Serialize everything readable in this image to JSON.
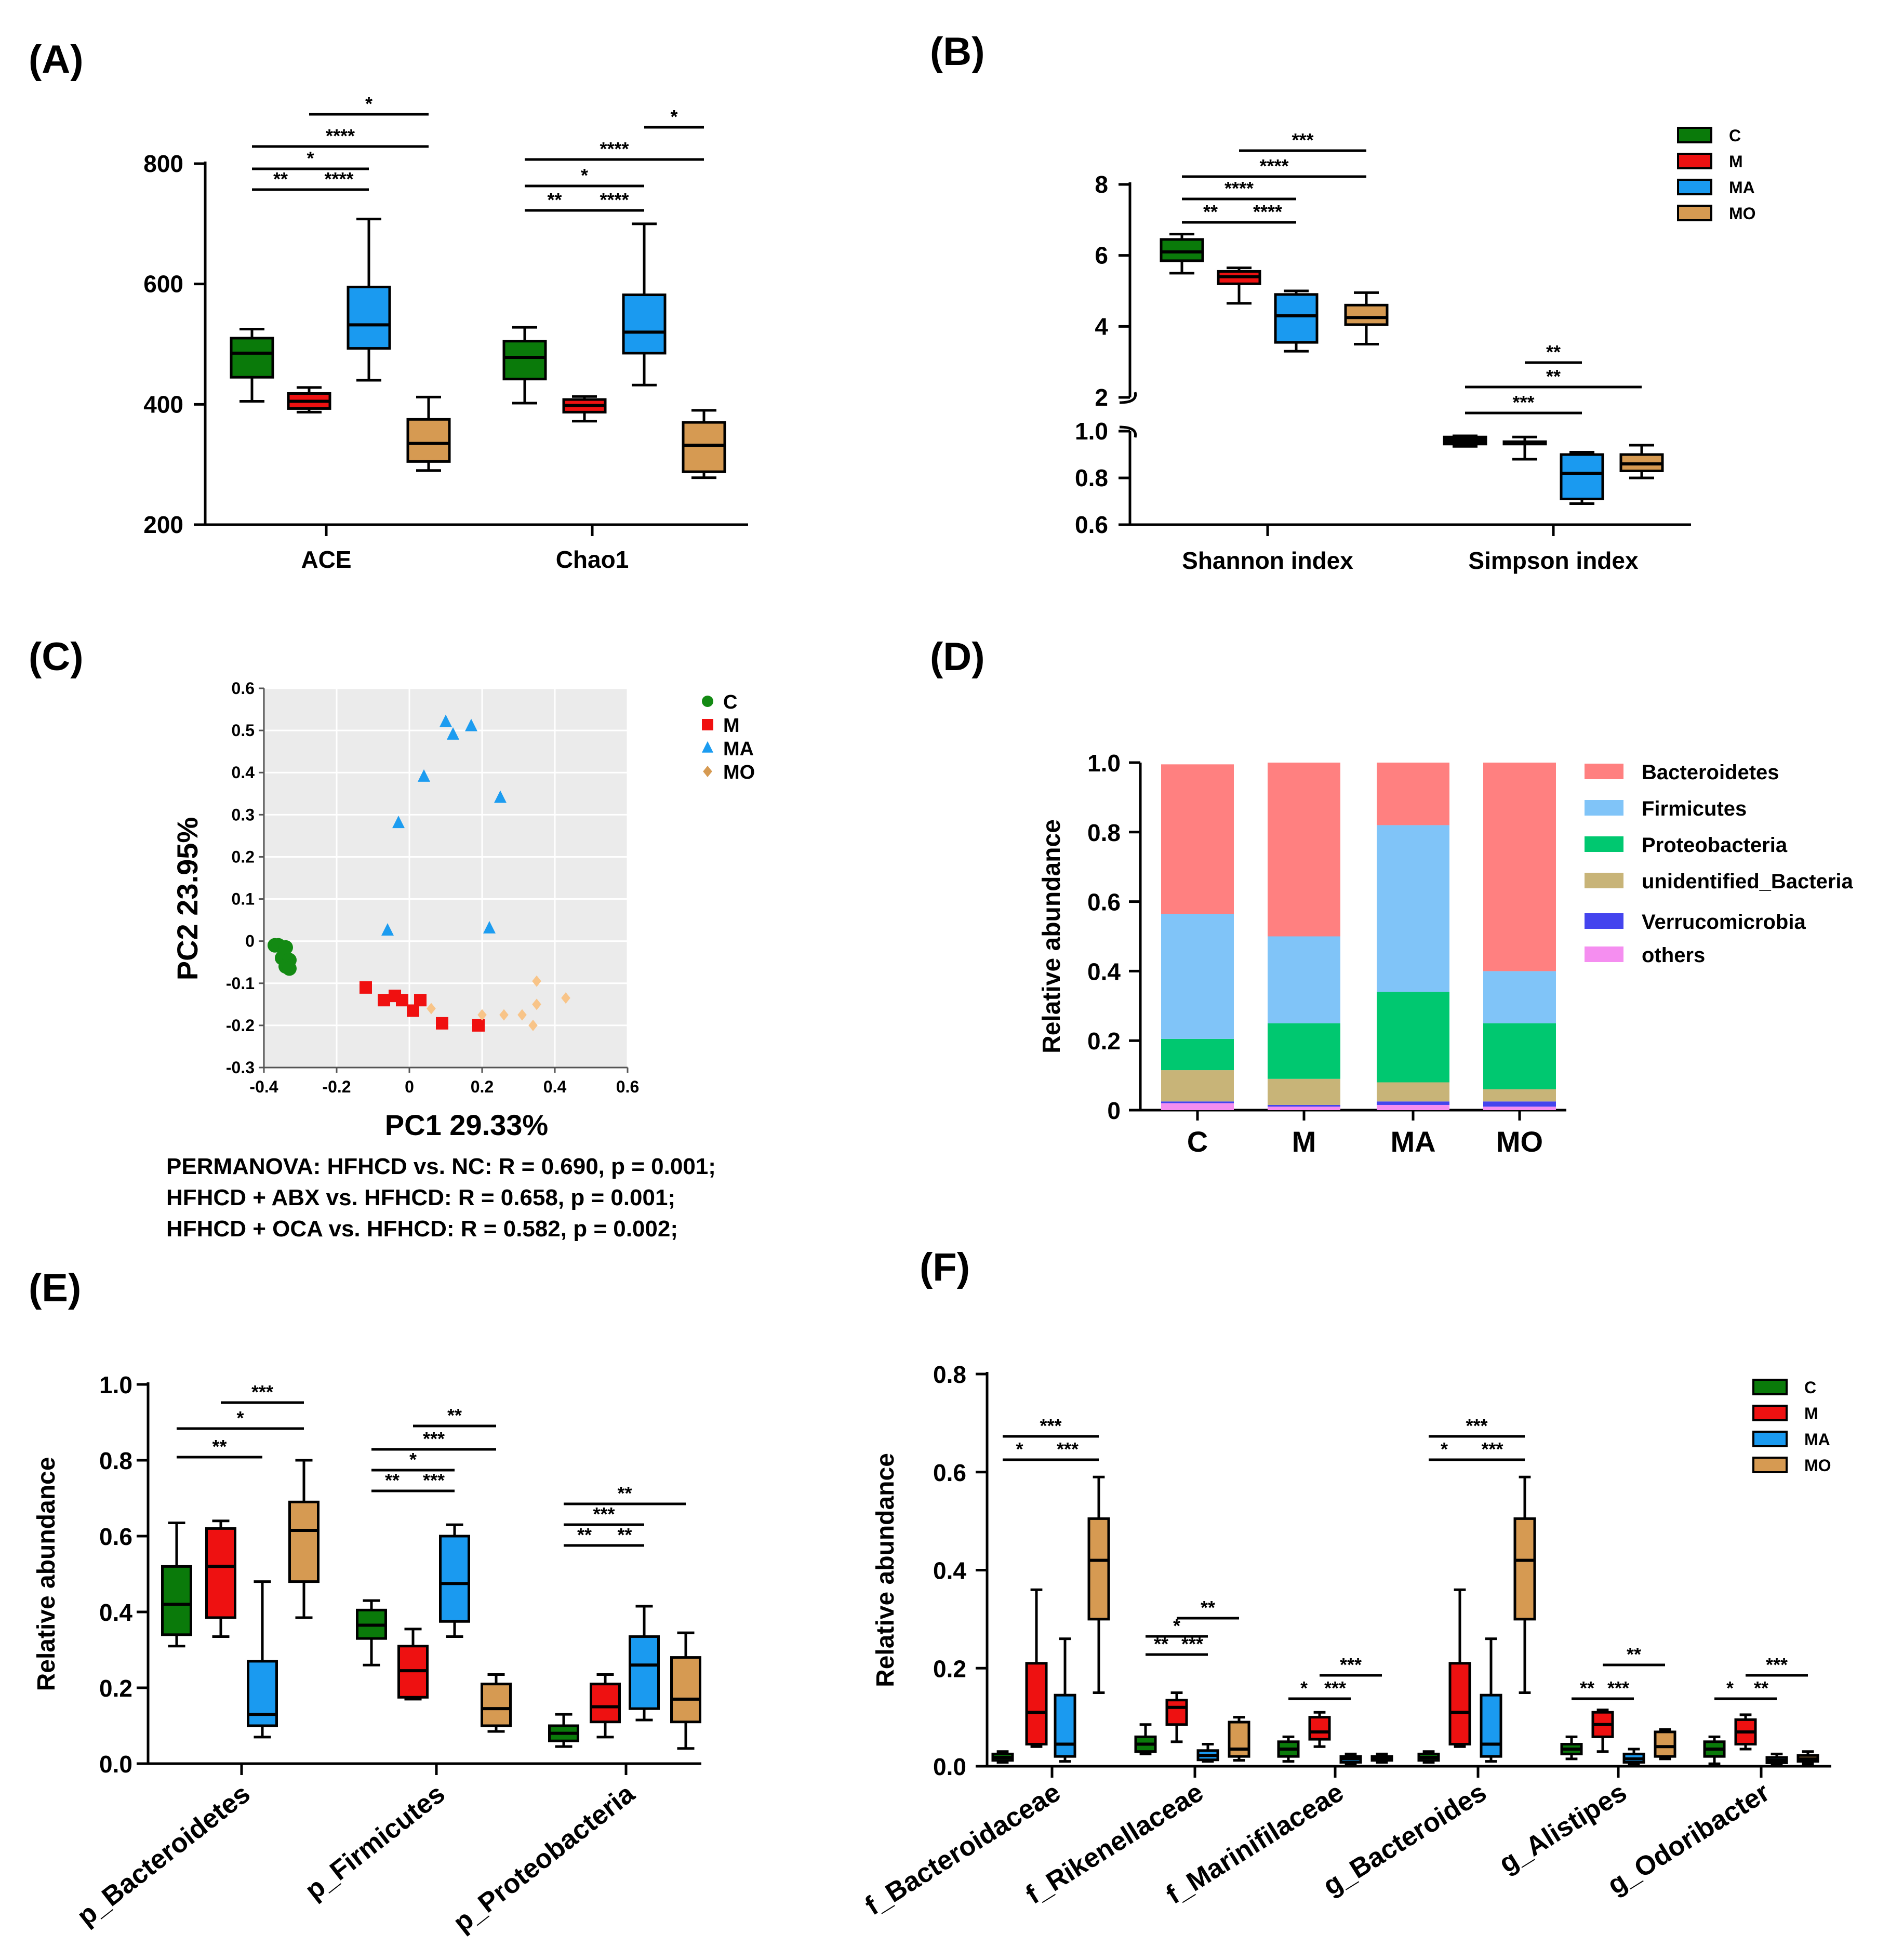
{
  "colors": {
    "C": "#0a7a0a",
    "M": "#ee1111",
    "MA": "#1a9af0",
    "MO": "#d69a52"
  },
  "phylum_colors": [
    "#ff8080",
    "#80c4f8",
    "#00c870",
    "#c8b478",
    "#4444ee",
    "#f58ef0"
  ],
  "chart_data": [
    {
      "panel": "(A)",
      "type": "boxplot",
      "categories": [
        "ACE",
        "Chao1"
      ],
      "groups": [
        "C",
        "M",
        "MA",
        "MO"
      ],
      "ylim": [
        200,
        800
      ],
      "yticks": [
        200,
        400,
        600,
        800
      ],
      "boxes": [
        [
          [
            405,
            445,
            485,
            510,
            525
          ],
          [
            387,
            393,
            405,
            418,
            428
          ],
          [
            440,
            493,
            532,
            595,
            708
          ],
          [
            290,
            305,
            335,
            375,
            412
          ]
        ],
        [
          [
            402,
            442,
            478,
            505,
            528
          ],
          [
            372,
            387,
            398,
            408,
            413
          ],
          [
            432,
            485,
            520,
            582,
            700
          ],
          [
            278,
            288,
            332,
            370,
            390
          ]
        ]
      ],
      "significance": [
        [
          {
            "from": 0,
            "to": 1,
            "label": "**"
          },
          {
            "from": 1,
            "to": 2,
            "label": "****"
          },
          {
            "from": 0,
            "to": 2,
            "label": "*"
          },
          {
            "from": 0,
            "to": 3,
            "label": "****"
          },
          {
            "from": 1,
            "to": 3,
            "label": "*"
          }
        ],
        [
          {
            "from": 0,
            "to": 1,
            "label": "**"
          },
          {
            "from": 1,
            "to": 2,
            "label": "****"
          },
          {
            "from": 0,
            "to": 2,
            "label": "*"
          },
          {
            "from": 0,
            "to": 3,
            "label": "****"
          },
          {
            "from": 2,
            "to": 3,
            "label": "*"
          }
        ]
      ]
    },
    {
      "panel": "(B)",
      "type": "boxplot",
      "categories": [
        "Shannon index",
        "Simpson index"
      ],
      "groups": [
        "C",
        "M",
        "MA",
        "MO"
      ],
      "legend": [
        "C",
        "M",
        "MA",
        "MO"
      ],
      "ylim_upper": [
        2,
        8
      ],
      "yticks_upper": [
        2,
        4,
        6,
        8
      ],
      "ylim_lower": [
        0.6,
        1.0
      ],
      "yticks_lower": [
        "0.6",
        "0.8",
        "1.0"
      ],
      "boxes": [
        [
          [
            5.5,
            5.85,
            6.1,
            6.45,
            6.6
          ],
          [
            4.65,
            5.2,
            5.4,
            5.55,
            5.65
          ],
          [
            3.3,
            3.55,
            4.3,
            4.9,
            5.0
          ],
          [
            3.5,
            4.05,
            4.25,
            4.6,
            4.95
          ]
        ],
        [
          [
            0.935,
            0.945,
            0.955,
            0.975,
            0.98
          ],
          [
            0.88,
            0.945,
            0.95,
            0.955,
            0.975
          ],
          [
            0.69,
            0.71,
            0.82,
            0.9,
            0.91
          ],
          [
            0.8,
            0.83,
            0.86,
            0.9,
            0.94
          ]
        ]
      ],
      "significance": [
        [
          {
            "from": 0,
            "to": 1,
            "label": "**"
          },
          {
            "from": 1,
            "to": 2,
            "label": "****"
          },
          {
            "from": 0,
            "to": 2,
            "label": "****"
          },
          {
            "from": 0,
            "to": 3,
            "label": "****"
          },
          {
            "from": 1,
            "to": 3,
            "label": "***"
          }
        ],
        [
          {
            "from": 0,
            "to": 2,
            "label": "***"
          },
          {
            "from": 0,
            "to": 3,
            "label": "**"
          },
          {
            "from": 1,
            "to": 2,
            "label": "**"
          }
        ]
      ]
    },
    {
      "panel": "(C)",
      "type": "scatter",
      "xlabel": "PC1  29.33%",
      "ylabel": "PC2  23.95%",
      "xlim": [
        -0.4,
        0.6
      ],
      "xticks": [
        "-0.4",
        "-0.2",
        "0",
        "0.2",
        "0.4",
        "0.6"
      ],
      "ylim": [
        -0.3,
        0.6
      ],
      "yticks": [
        "-0.3",
        "-0.2",
        "-0.1",
        "0",
        "0.1",
        "0.2",
        "0.3",
        "0.4",
        "0.5",
        "0.6"
      ],
      "legend": [
        "C",
        "M",
        "MA",
        "MO"
      ],
      "series": [
        {
          "name": "C",
          "marker": "circle",
          "points": [
            [
              -0.37,
              -0.01
            ],
            [
              -0.36,
              -0.01
            ],
            [
              -0.34,
              -0.015
            ],
            [
              -0.35,
              -0.04
            ],
            [
              -0.33,
              -0.045
            ],
            [
              -0.34,
              -0.06
            ],
            [
              -0.33,
              -0.065
            ]
          ]
        },
        {
          "name": "M",
          "marker": "square",
          "points": [
            [
              -0.12,
              -0.11
            ],
            [
              -0.07,
              -0.14
            ],
            [
              -0.04,
              -0.13
            ],
            [
              -0.02,
              -0.14
            ],
            [
              0.01,
              -0.165
            ],
            [
              0.03,
              -0.14
            ],
            [
              0.09,
              -0.195
            ],
            [
              0.19,
              -0.2
            ]
          ]
        },
        {
          "name": "MA",
          "marker": "triangle",
          "points": [
            [
              0.1,
              0.52
            ],
            [
              0.12,
              0.49
            ],
            [
              0.17,
              0.51
            ],
            [
              0.04,
              0.39
            ],
            [
              0.25,
              0.34
            ],
            [
              -0.03,
              0.28
            ],
            [
              -0.06,
              0.025
            ],
            [
              0.22,
              0.03
            ]
          ]
        },
        {
          "name": "MO",
          "marker": "diamond",
          "points": [
            [
              0.06,
              -0.16
            ],
            [
              0.2,
              -0.175
            ],
            [
              0.26,
              -0.175
            ],
            [
              0.31,
              -0.175
            ],
            [
              0.34,
              -0.2
            ],
            [
              0.35,
              -0.095
            ],
            [
              0.35,
              -0.15
            ],
            [
              0.43,
              -0.135
            ]
          ]
        }
      ],
      "annotation": [
        "PERMANOVA: HFHCD vs. NC: R = 0.690, p = 0.001;",
        "HFHCD + ABX vs. HFHCD: R = 0.658, p = 0.001;",
        "HFHCD + OCA vs. HFHCD: R = 0.582, p = 0.002;"
      ]
    },
    {
      "panel": "(D)",
      "type": "stacked_bar",
      "ylabel": "Relative abundance",
      "ylim": [
        0,
        1.0
      ],
      "yticks": [
        "0",
        "0.2",
        "0.4",
        "0.6",
        "0.8",
        "1.0"
      ],
      "categories": [
        "C",
        "M",
        "MA",
        "MO"
      ],
      "stack_order": [
        "others",
        "Verrucomicrobia",
        "unidentified_Bacteria",
        "Proteobacteria",
        "Firmicutes",
        "Bacteroidetes"
      ],
      "legend": [
        "Bacteroidetes",
        "Firmicutes",
        "Proteobacteria",
        "unidentified_Bacteria",
        "Verrucomicrobia",
        "others"
      ],
      "series": [
        {
          "name": "Bacteroidetes",
          "values": [
            0.43,
            0.5,
            0.18,
            0.6
          ]
        },
        {
          "name": "Firmicutes",
          "values": [
            0.36,
            0.25,
            0.48,
            0.15
          ]
        },
        {
          "name": "Proteobacteria",
          "values": [
            0.09,
            0.16,
            0.26,
            0.19
          ]
        },
        {
          "name": "unidentified_Bacteria",
          "values": [
            0.09,
            0.075,
            0.055,
            0.035
          ]
        },
        {
          "name": "Verrucomicrobia",
          "values": [
            0.005,
            0.005,
            0.01,
            0.015
          ]
        },
        {
          "name": "others",
          "values": [
            0.02,
            0.01,
            0.015,
            0.01
          ]
        }
      ]
    },
    {
      "panel": "(E)",
      "type": "boxplot",
      "ylabel": "Relative abundance",
      "ylim": [
        0,
        1.0
      ],
      "yticks": [
        "0.0",
        "0.2",
        "0.4",
        "0.6",
        "0.8",
        "1.0"
      ],
      "categories": [
        "p_Bacteroidetes",
        "p_Firmicutes",
        "p_Proteobacteria"
      ],
      "groups": [
        "C",
        "M",
        "MA",
        "MO"
      ],
      "boxes": [
        [
          [
            0.31,
            0.34,
            0.42,
            0.52,
            0.635
          ],
          [
            0.335,
            0.385,
            0.52,
            0.62,
            0.64
          ],
          [
            0.07,
            0.1,
            0.13,
            0.27,
            0.48
          ],
          [
            0.385,
            0.48,
            0.615,
            0.69,
            0.8
          ]
        ],
        [
          [
            0.26,
            0.33,
            0.365,
            0.405,
            0.43
          ],
          [
            0.17,
            0.175,
            0.245,
            0.31,
            0.355
          ],
          [
            0.335,
            0.375,
            0.475,
            0.6,
            0.63
          ],
          [
            0.085,
            0.1,
            0.145,
            0.21,
            0.235
          ]
        ],
        [
          [
            0.045,
            0.06,
            0.08,
            0.1,
            0.13
          ],
          [
            0.07,
            0.11,
            0.15,
            0.21,
            0.235
          ],
          [
            0.115,
            0.145,
            0.26,
            0.335,
            0.415
          ],
          [
            0.04,
            0.11,
            0.17,
            0.28,
            0.345
          ]
        ]
      ],
      "significance": [
        [
          {
            "from": 0,
            "to": 2,
            "label": "**"
          },
          {
            "from": 0,
            "to": 3,
            "label": "*"
          },
          {
            "from": 1,
            "to": 3,
            "label": "***"
          }
        ],
        [
          {
            "from": 0,
            "to": 1,
            "label": "**"
          },
          {
            "from": 1,
            "to": 2,
            "label": "***"
          },
          {
            "from": 0,
            "to": 2,
            "label": "*"
          },
          {
            "from": 0,
            "to": 3,
            "label": "***"
          },
          {
            "from": 1,
            "to": 3,
            "label": "**"
          }
        ],
        [
          {
            "from": 0,
            "to": 1,
            "label": "**"
          },
          {
            "from": 1,
            "to": 2,
            "label": "**"
          },
          {
            "from": 0,
            "to": 2,
            "label": "***"
          },
          {
            "from": 0,
            "to": 3,
            "label": "**"
          }
        ]
      ]
    },
    {
      "panel": "(F)",
      "type": "boxplot",
      "ylabel": "Relative abundance",
      "ylim": [
        0,
        0.8
      ],
      "yticks": [
        "0.0",
        "0.2",
        "0.4",
        "0.6",
        "0.8"
      ],
      "categories": [
        "f_Bacteroidaceae",
        "f_Rikenellaceae",
        "f_Marinifilaceae",
        "g_Bacteroides",
        "g_Alistipes",
        "g_Odoribacter"
      ],
      "groups": [
        "C",
        "M",
        "MA",
        "MO"
      ],
      "legend": [
        "C",
        "M",
        "MA",
        "MO"
      ],
      "boxes": [
        [
          [
            0.008,
            0.012,
            0.018,
            0.025,
            0.03
          ],
          [
            0.04,
            0.045,
            0.11,
            0.21,
            0.36
          ],
          [
            0.01,
            0.02,
            0.045,
            0.145,
            0.26
          ],
          [
            0.15,
            0.3,
            0.42,
            0.505,
            0.59
          ]
        ],
        [
          [
            0.025,
            0.03,
            0.045,
            0.06,
            0.085
          ],
          [
            0.05,
            0.085,
            0.12,
            0.135,
            0.15
          ],
          [
            0.01,
            0.013,
            0.022,
            0.032,
            0.045
          ],
          [
            0.012,
            0.02,
            0.035,
            0.09,
            0.1
          ]
        ],
        [
          [
            0.01,
            0.02,
            0.035,
            0.05,
            0.06
          ],
          [
            0.04,
            0.055,
            0.07,
            0.1,
            0.11
          ],
          [
            0.005,
            0.008,
            0.015,
            0.02,
            0.025
          ],
          [
            0.008,
            0.012,
            0.015,
            0.02,
            0.025
          ]
        ],
        [
          [
            0.008,
            0.012,
            0.018,
            0.025,
            0.03
          ],
          [
            0.04,
            0.045,
            0.11,
            0.21,
            0.36
          ],
          [
            0.01,
            0.02,
            0.045,
            0.145,
            0.26
          ],
          [
            0.15,
            0.3,
            0.42,
            0.505,
            0.59
          ]
        ],
        [
          [
            0.015,
            0.025,
            0.035,
            0.045,
            0.06
          ],
          [
            0.03,
            0.06,
            0.085,
            0.11,
            0.115
          ],
          [
            0.005,
            0.008,
            0.015,
            0.025,
            0.035
          ],
          [
            0.015,
            0.02,
            0.04,
            0.07,
            0.075
          ]
        ],
        [
          [
            0.005,
            0.02,
            0.035,
            0.05,
            0.06
          ],
          [
            0.035,
            0.045,
            0.07,
            0.095,
            0.105
          ],
          [
            0.004,
            0.007,
            0.012,
            0.018,
            0.025
          ],
          [
            0.005,
            0.01,
            0.015,
            0.022,
            0.03
          ]
        ]
      ],
      "significance": [
        [
          {
            "from": 0,
            "to": 1,
            "label": "*"
          },
          {
            "from": 1,
            "to": 3,
            "label": "***"
          },
          {
            "from": 0,
            "to": 3,
            "label": "***"
          }
        ],
        [
          {
            "from": 0,
            "to": 1,
            "label": "**"
          },
          {
            "from": 1,
            "to": 2,
            "label": "***"
          },
          {
            "from": 0,
            "to": 2,
            "label": "*"
          },
          {
            "from": 1,
            "to": 3,
            "label": "**"
          }
        ],
        [
          {
            "from": 0,
            "to": 1,
            "label": "*"
          },
          {
            "from": 1,
            "to": 2,
            "label": "***"
          },
          {
            "from": 1,
            "to": 3,
            "label": "***"
          }
        ],
        [
          {
            "from": 0,
            "to": 1,
            "label": "*"
          },
          {
            "from": 1,
            "to": 3,
            "label": "***"
          },
          {
            "from": 0,
            "to": 3,
            "label": "***"
          }
        ],
        [
          {
            "from": 0,
            "to": 1,
            "label": "**"
          },
          {
            "from": 1,
            "to": 2,
            "label": "***"
          },
          {
            "from": 1,
            "to": 3,
            "label": "**"
          }
        ],
        [
          {
            "from": 0,
            "to": 1,
            "label": "*"
          },
          {
            "from": 1,
            "to": 2,
            "label": "**"
          },
          {
            "from": 1,
            "to": 3,
            "label": "***"
          }
        ]
      ]
    }
  ]
}
